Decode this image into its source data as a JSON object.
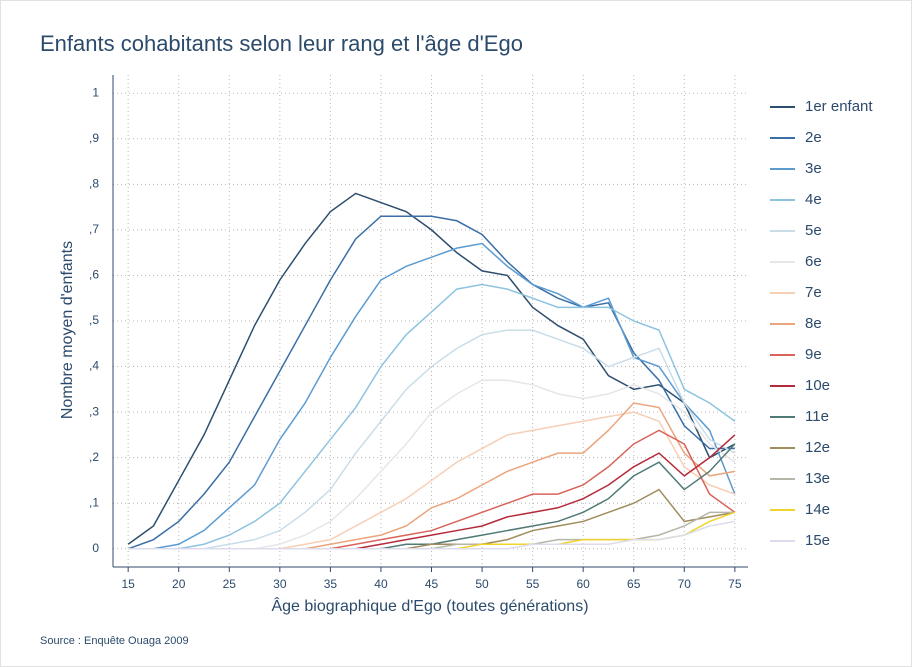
{
  "chart_data": {
    "type": "line",
    "title": "Enfants cohabitants selon leur rang et l'âge d'Ego",
    "x_label": "Âge biographique d'Ego (toutes générations)",
    "y_label": "Nombre moyen d'enfants",
    "source": "Source : Enquête Ouaga 2009",
    "x": [
      15,
      17.5,
      20,
      22.5,
      25,
      27.5,
      30,
      32.5,
      35,
      37.5,
      40,
      42.5,
      45,
      47.5,
      50,
      52.5,
      55,
      57.5,
      60,
      62.5,
      65,
      67.5,
      70,
      72.5,
      75
    ],
    "xlim": [
      13.5,
      76.3
    ],
    "xticks": [
      15,
      20,
      25,
      30,
      35,
      40,
      45,
      50,
      55,
      60,
      65,
      70,
      75
    ],
    "ylim": [
      -0.04,
      1.04
    ],
    "yticks": [
      0,
      {
        "value": 0.1,
        "label": ",1"
      },
      {
        "value": 0.2,
        "label": ",2"
      },
      {
        "value": 0.3,
        "label": ",3"
      },
      {
        "value": 0.4,
        "label": ",4"
      },
      {
        "value": 0.5,
        "label": ",5"
      },
      {
        "value": 0.6,
        "label": ",6"
      },
      {
        "value": 0.7,
        "label": ",7"
      },
      {
        "value": 0.8,
        "label": ",8"
      },
      {
        "value": 0.9,
        "label": ",9"
      },
      1
    ],
    "grid": true,
    "legend": "right",
    "series": [
      {
        "name": "1er enfant",
        "color": "#2d4e6e",
        "values": [
          0.01,
          0.05,
          0.15,
          0.25,
          0.37,
          0.49,
          0.59,
          0.67,
          0.74,
          0.78,
          0.76,
          0.74,
          0.7,
          0.65,
          0.61,
          0.6,
          0.53,
          0.49,
          0.46,
          0.38,
          0.35,
          0.36,
          0.32,
          0.2,
          0.23
        ]
      },
      {
        "name": "2e",
        "color": "#3a6ea5",
        "values": [
          0,
          0.02,
          0.06,
          0.12,
          0.19,
          0.29,
          0.39,
          0.49,
          0.59,
          0.68,
          0.73,
          0.73,
          0.73,
          0.72,
          0.69,
          0.63,
          0.58,
          0.55,
          0.53,
          0.54,
          0.43,
          0.37,
          0.27,
          0.22,
          0.22
        ]
      },
      {
        "name": "3e",
        "color": "#5b9bd0",
        "values": [
          0,
          0,
          0.01,
          0.04,
          0.09,
          0.14,
          0.24,
          0.32,
          0.42,
          0.51,
          0.59,
          0.62,
          0.64,
          0.66,
          0.67,
          0.62,
          0.58,
          0.56,
          0.53,
          0.55,
          0.42,
          0.4,
          0.32,
          0.26,
          0.12
        ]
      },
      {
        "name": "4e",
        "color": "#8ec3e0",
        "values": [
          0,
          0,
          0,
          0.01,
          0.03,
          0.06,
          0.1,
          0.17,
          0.24,
          0.31,
          0.4,
          0.47,
          0.52,
          0.57,
          0.58,
          0.57,
          0.55,
          0.53,
          0.53,
          0.53,
          0.5,
          0.48,
          0.35,
          0.32,
          0.28
        ]
      },
      {
        "name": "5e",
        "color": "#c9dde8",
        "values": [
          0,
          0,
          0,
          0,
          0.01,
          0.02,
          0.04,
          0.08,
          0.13,
          0.21,
          0.28,
          0.35,
          0.4,
          0.44,
          0.47,
          0.48,
          0.48,
          0.46,
          0.44,
          0.4,
          0.42,
          0.44,
          0.32,
          0.24,
          0.21
        ]
      },
      {
        "name": "6e",
        "color": "#e6e6ea",
        "values": [
          0,
          0,
          0,
          0,
          0,
          0,
          0.01,
          0.03,
          0.06,
          0.11,
          0.17,
          0.23,
          0.3,
          0.34,
          0.37,
          0.37,
          0.36,
          0.34,
          0.33,
          0.34,
          0.36,
          0.34,
          0.3,
          0.23,
          0.19
        ]
      },
      {
        "name": "7e",
        "color": "#f6cfb5",
        "values": [
          0,
          0,
          0,
          0,
          0,
          0,
          0,
          0.01,
          0.02,
          0.05,
          0.08,
          0.11,
          0.15,
          0.19,
          0.22,
          0.25,
          0.26,
          0.27,
          0.28,
          0.29,
          0.3,
          0.28,
          0.18,
          0.14,
          0.12
        ]
      },
      {
        "name": "8e",
        "color": "#eba57d",
        "values": [
          0,
          0,
          0,
          0,
          0,
          0,
          0,
          0,
          0.01,
          0.02,
          0.03,
          0.05,
          0.09,
          0.11,
          0.14,
          0.17,
          0.19,
          0.21,
          0.21,
          0.26,
          0.32,
          0.31,
          0.21,
          0.16,
          0.17
        ]
      },
      {
        "name": "9e",
        "color": "#d9635a",
        "values": [
          0,
          0,
          0,
          0,
          0,
          0,
          0,
          0,
          0,
          0.01,
          0.02,
          0.03,
          0.04,
          0.06,
          0.08,
          0.1,
          0.12,
          0.12,
          0.14,
          0.18,
          0.23,
          0.26,
          0.23,
          0.12,
          0.08
        ]
      },
      {
        "name": "10e",
        "color": "#b52a3a",
        "values": [
          0,
          0,
          0,
          0,
          0,
          0,
          0,
          0,
          0,
          0,
          0.01,
          0.02,
          0.03,
          0.04,
          0.05,
          0.07,
          0.08,
          0.09,
          0.11,
          0.14,
          0.18,
          0.21,
          0.16,
          0.2,
          0.25
        ]
      },
      {
        "name": "11e",
        "color": "#4f7a76",
        "values": [
          0,
          0,
          0,
          0,
          0,
          0,
          0,
          0,
          0,
          0,
          0,
          0.01,
          0.01,
          0.02,
          0.03,
          0.04,
          0.05,
          0.06,
          0.08,
          0.11,
          0.16,
          0.19,
          0.13,
          0.17,
          0.23
        ]
      },
      {
        "name": "12e",
        "color": "#a08c5c",
        "values": [
          0,
          0,
          0,
          0,
          0,
          0,
          0,
          0,
          0,
          0,
          0,
          0,
          0.01,
          0.01,
          0.01,
          0.02,
          0.04,
          0.05,
          0.06,
          0.08,
          0.1,
          0.13,
          0.06,
          0.07,
          0.08
        ]
      },
      {
        "name": "13e",
        "color": "#b5b5a8",
        "values": [
          0,
          0,
          0,
          0,
          0,
          0,
          0,
          0,
          0,
          0,
          0,
          0,
          0,
          0.01,
          0.01,
          0.01,
          0.01,
          0.02,
          0.02,
          0.02,
          0.02,
          0.03,
          0.05,
          0.08,
          0.08
        ]
      },
      {
        "name": "14e",
        "color": "#f1d42b",
        "values": [
          0,
          0,
          0,
          0,
          0,
          0,
          0,
          0,
          0,
          0,
          0,
          0,
          0,
          0,
          0.01,
          0.01,
          0.01,
          0.01,
          0.02,
          0.02,
          0.02,
          0.02,
          0.03,
          0.06,
          0.08
        ]
      },
      {
        "name": "15e",
        "color": "#dcdcec",
        "values": [
          0,
          0,
          0,
          0,
          0,
          0,
          0,
          0,
          0,
          0,
          0,
          0,
          0,
          0,
          0,
          0,
          0.01,
          0.01,
          0.01,
          0.01,
          0.02,
          0.02,
          0.03,
          0.05,
          0.06
        ]
      }
    ]
  }
}
